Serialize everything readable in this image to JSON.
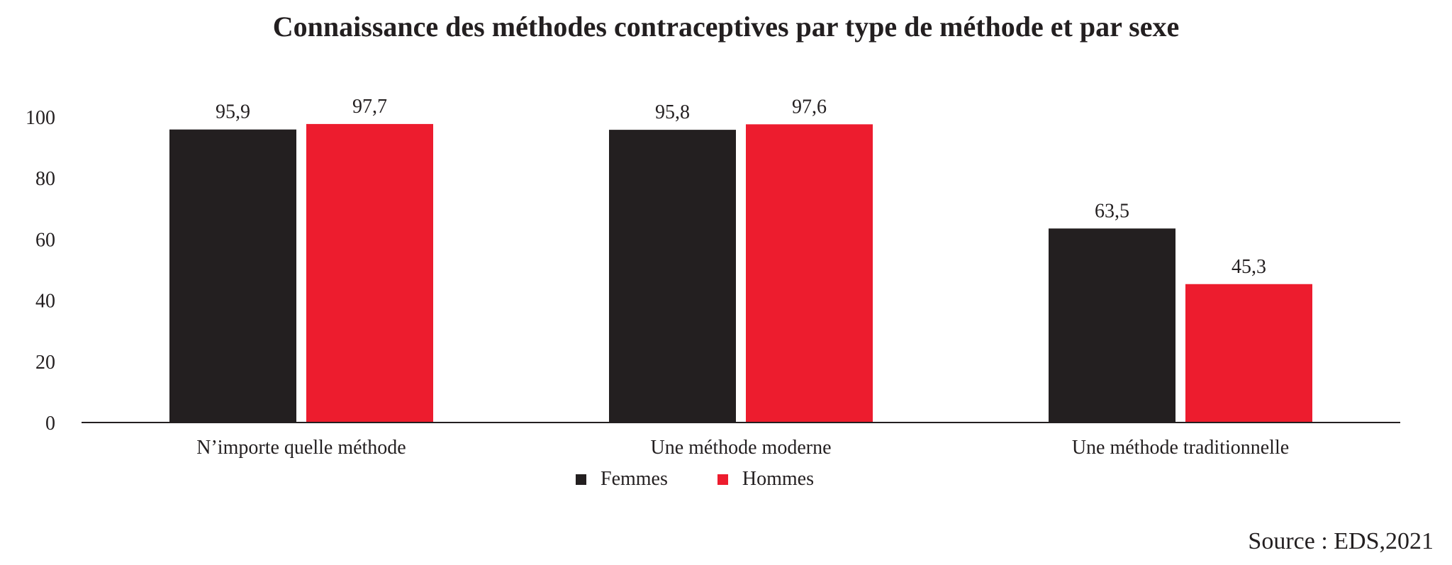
{
  "chart_data": {
    "type": "bar",
    "title": "Connaissance des méthodes contraceptives par type de méthode et par sexe",
    "categories": [
      "N’importe quelle méthode",
      "Une méthode moderne",
      "Une méthode traditionnelle"
    ],
    "series": [
      {
        "name": "Femmes",
        "values": [
          95.9,
          95.8,
          63.5
        ],
        "labels": [
          "95,9",
          "95,8",
          "63,5"
        ],
        "color": "#231f20"
      },
      {
        "name": "Hommes",
        "values": [
          97.7,
          97.6,
          45.3
        ],
        "labels": [
          "97,7",
          "97,6",
          "45,3"
        ],
        "color": "#ed1c2e"
      }
    ],
    "ylim": [
      0,
      100
    ],
    "yticks": [
      0,
      20,
      40,
      60,
      80,
      100
    ],
    "xlabel": "",
    "ylabel": "",
    "grid": false,
    "legend_position": "bottom-center"
  },
  "source": "Source : EDS,2021"
}
